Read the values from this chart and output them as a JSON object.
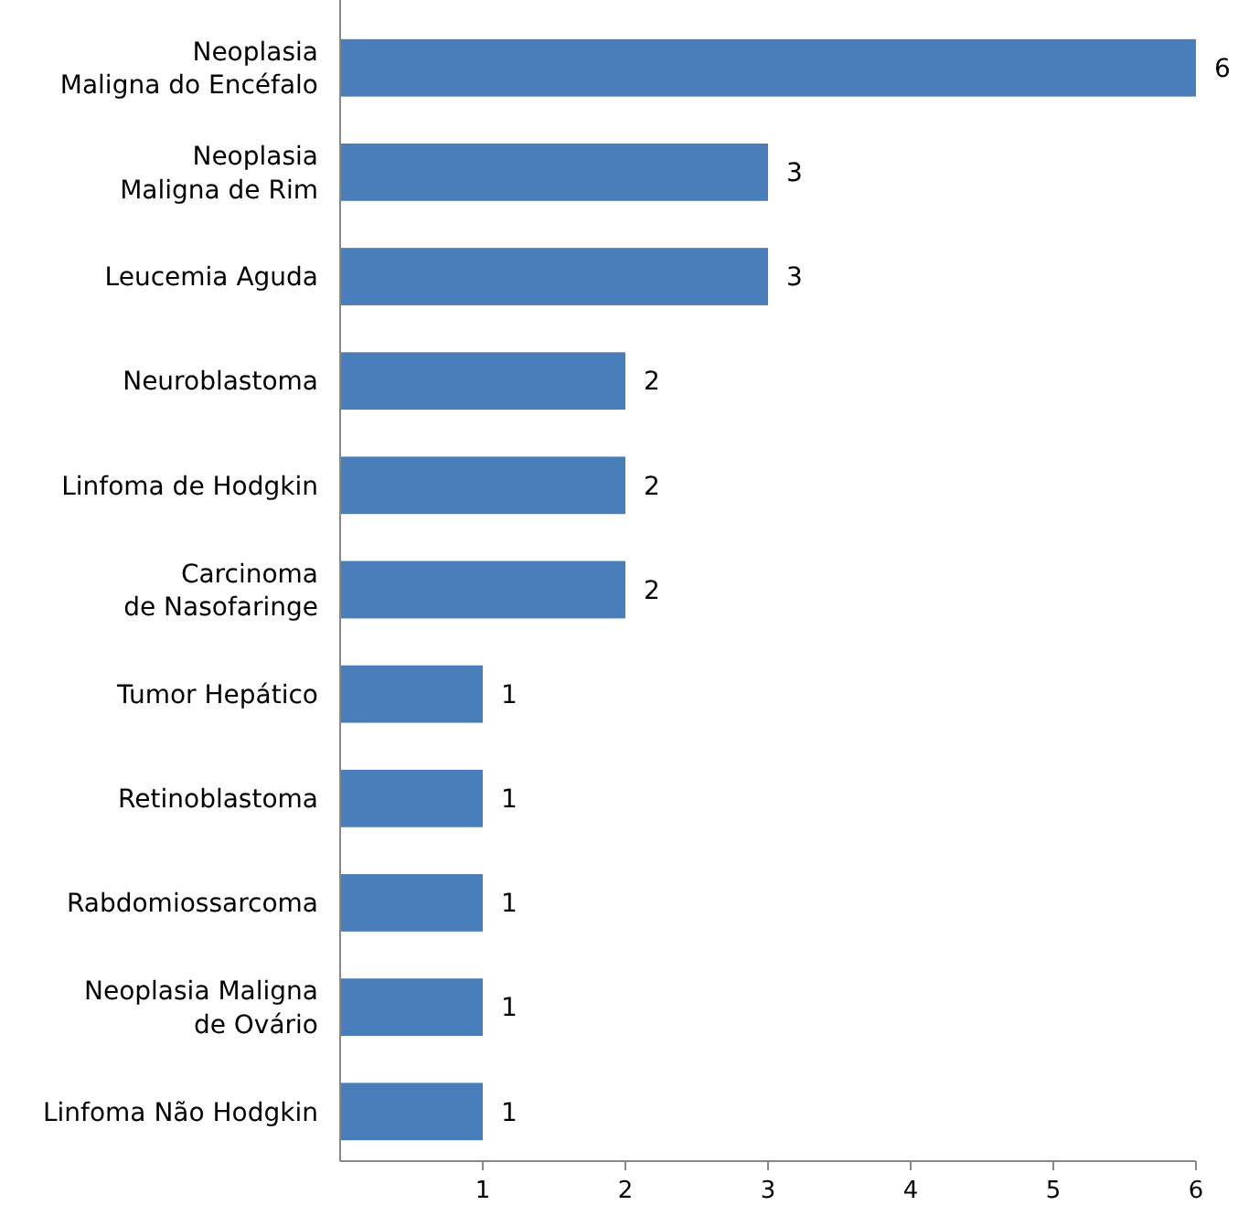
{
  "chart_data": {
    "type": "bar",
    "orientation": "horizontal",
    "categories": [
      "Neoplasia\nMaligna do Encéfalo",
      "Neoplasia\nMaligna de Rim",
      "Leucemia Aguda",
      "Neuroblastoma",
      "Linfoma de Hodgkin",
      "Carcinoma\nde Nasofaringe",
      "Tumor Hepático",
      "Retinoblastoma",
      "Rabdomiossarcoma",
      "Neoplasia Maligna\nde Ovário",
      "Linfoma Não Hodgkin"
    ],
    "values": [
      6,
      3,
      3,
      2,
      2,
      2,
      1,
      1,
      1,
      1,
      1
    ],
    "color": "#4a7ebb",
    "xlim": [
      0,
      6
    ],
    "xticks": [
      1,
      2,
      3,
      4,
      5,
      6
    ],
    "data_labels": true
  }
}
